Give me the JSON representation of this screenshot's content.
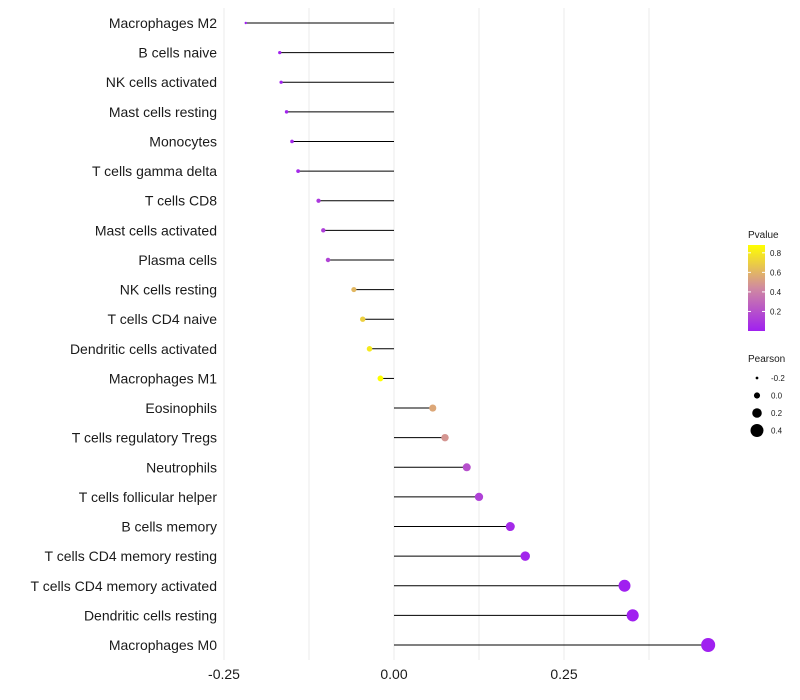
{
  "chart_data": {
    "type": "lollipop",
    "title": "",
    "xlabel": "",
    "ylabel": "",
    "xlim": [
      -0.25,
      0.475
    ],
    "xticks": [
      -0.25,
      0,
      0.25
    ],
    "xtick_labels": [
      "-0.25",
      "0.00",
      "0.25"
    ],
    "grid": true,
    "categories": [
      "Macrophages M2",
      "B cells naive",
      "NK cells activated",
      "Mast cells resting",
      "Monocytes",
      "T cells gamma delta",
      "T cells CD8",
      "Mast cells activated",
      "Plasma cells",
      "NK cells resting",
      "T cells CD4 naive",
      "Dendritic cells activated",
      "Macrophages M1",
      "Eosinophils",
      "T cells regulatory  Tregs ",
      "Neutrophils",
      "T cells follicular helper",
      "B cells memory",
      "T cells CD4 memory resting",
      "T cells CD4 memory activated",
      "Dendritic cells resting",
      "Macrophages M0"
    ],
    "values": [
      -0.218,
      -0.168,
      -0.166,
      -0.158,
      -0.15,
      -0.141,
      -0.111,
      -0.104,
      -0.097,
      -0.059,
      -0.046,
      -0.036,
      -0.02,
      0.057,
      0.075,
      0.107,
      0.125,
      0.171,
      0.193,
      0.339,
      0.351,
      0.462
    ],
    "pvalues": [
      0.001,
      0.012,
      0.013,
      0.02,
      0.028,
      0.04,
      0.1,
      0.125,
      0.15,
      0.61,
      0.7,
      0.8,
      0.88,
      0.55,
      0.48,
      0.2,
      0.14,
      0.04,
      0.02,
      0.0001,
      0.0001,
      0.0001
    ],
    "legends": {
      "color": {
        "title": "Pvalue",
        "ticks": [
          0.8,
          0.6,
          0.4,
          0.2
        ],
        "tick_labels": [
          "0.8",
          "0.6",
          "0.4",
          "0.2"
        ],
        "range": [
          0,
          0.88
        ],
        "low_color": "#a020f0",
        "mid_color": "#d08aa0",
        "high_color": "#ffff00"
      },
      "size": {
        "title": "Pearson",
        "values": [
          -0.2,
          0.0,
          0.2,
          0.4
        ],
        "labels": [
          "-0.2",
          "0.0",
          "0.2",
          "0.4"
        ]
      }
    }
  }
}
